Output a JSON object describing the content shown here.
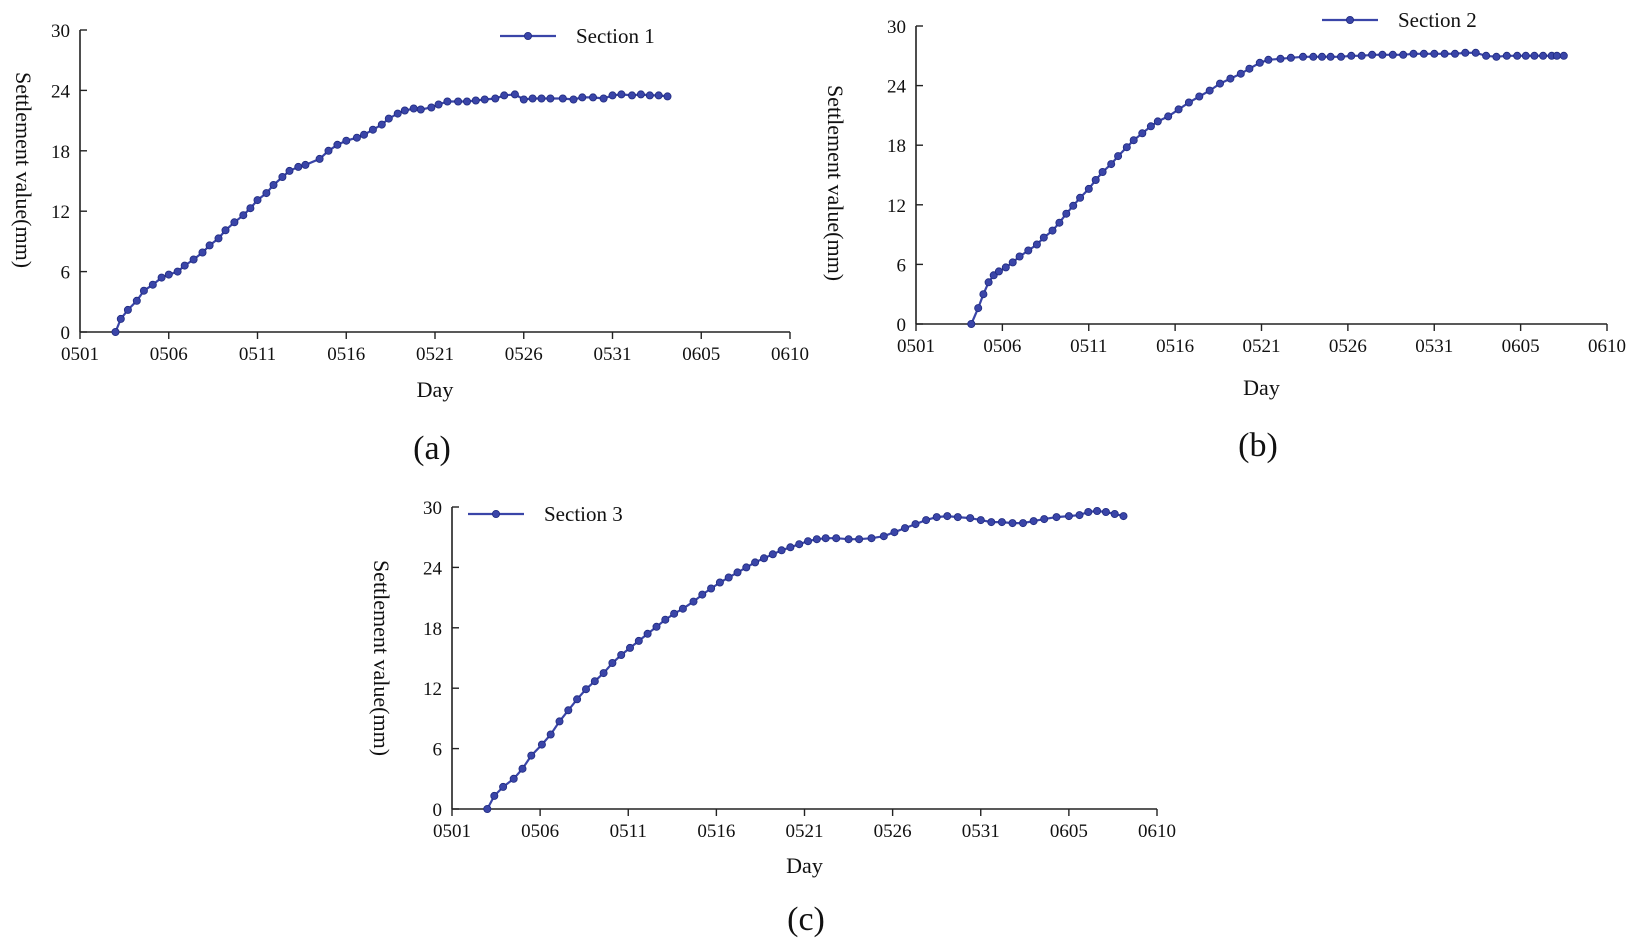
{
  "figure": {
    "xlabel": "Day",
    "ylabel": "Settlement value(mm)",
    "accent_color": "#3a45a8"
  },
  "chart_data": [
    {
      "type": "line",
      "panel_label": "(a)",
      "title": "",
      "xlabel": "Day",
      "ylabel": "Settlement value(mm)",
      "x_tick_labels": [
        "0501",
        "0506",
        "0511",
        "0516",
        "0521",
        "0526",
        "0531",
        "0605",
        "0610"
      ],
      "x_tick_days": [
        0,
        5,
        10,
        15,
        20,
        25,
        30,
        35,
        40
      ],
      "xlim": [
        0,
        40
      ],
      "ylim": [
        0,
        30
      ],
      "y_ticks": [
        0,
        6,
        12,
        18,
        24,
        30
      ],
      "legend": "top-center",
      "series": [
        {
          "name": "Section 1",
          "x_day": [
            2,
            2.3,
            2.7,
            3.2,
            3.6,
            4.1,
            4.6,
            5.0,
            5.5,
            5.9,
            6.4,
            6.9,
            7.3,
            7.8,
            8.2,
            8.7,
            9.2,
            9.6,
            10.0,
            10.5,
            10.9,
            11.4,
            11.8,
            12.3,
            12.7,
            13.5,
            14.0,
            14.5,
            15.0,
            15.6,
            16.0,
            16.5,
            17.0,
            17.4,
            17.9,
            18.3,
            18.8,
            19.2,
            19.8,
            20.2,
            20.7,
            21.3,
            21.8,
            22.3,
            22.8,
            23.4,
            23.9,
            24.5,
            25.0,
            25.5,
            26.0,
            26.5,
            27.2,
            27.8,
            28.3,
            28.9,
            29.5,
            30.0,
            30.5,
            31.1,
            31.6,
            32.1,
            32.6,
            33.1
          ],
          "values": [
            0,
            1.3,
            2.2,
            3.1,
            4.1,
            4.7,
            5.4,
            5.7,
            6.0,
            6.6,
            7.2,
            7.9,
            8.6,
            9.3,
            10.1,
            10.9,
            11.6,
            12.3,
            13.1,
            13.8,
            14.6,
            15.4,
            16.0,
            16.4,
            16.6,
            17.2,
            18.0,
            18.6,
            19.0,
            19.3,
            19.6,
            20.1,
            20.6,
            21.2,
            21.7,
            22.0,
            22.2,
            22.1,
            22.3,
            22.6,
            22.9,
            22.9,
            22.9,
            23.0,
            23.1,
            23.2,
            23.5,
            23.6,
            23.1,
            23.2,
            23.2,
            23.2,
            23.2,
            23.1,
            23.3,
            23.3,
            23.2,
            23.5,
            23.6,
            23.5,
            23.6,
            23.5,
            23.5,
            23.4
          ]
        }
      ]
    },
    {
      "type": "line",
      "panel_label": "(b)",
      "title": "",
      "xlabel": "Day",
      "ylabel": "Settlement value(mm)",
      "x_tick_labels": [
        "0501",
        "0506",
        "0511",
        "0516",
        "0521",
        "0526",
        "0531",
        "0605",
        "0610"
      ],
      "x_tick_days": [
        0,
        5,
        10,
        15,
        20,
        25,
        30,
        35,
        40
      ],
      "xlim": [
        0,
        40
      ],
      "ylim": [
        0,
        30
      ],
      "y_ticks": [
        0,
        6,
        12,
        18,
        24,
        30
      ],
      "legend": "top-center",
      "series": [
        {
          "name": "Section 2",
          "x_day": [
            3.2,
            3.6,
            3.9,
            4.2,
            4.5,
            4.8,
            5.2,
            5.6,
            6.0,
            6.5,
            7.0,
            7.4,
            7.9,
            8.3,
            8.7,
            9.1,
            9.5,
            10.0,
            10.4,
            10.8,
            11.3,
            11.7,
            12.2,
            12.6,
            13.1,
            13.6,
            14.0,
            14.6,
            15.2,
            15.8,
            16.4,
            17.0,
            17.6,
            18.2,
            18.8,
            19.3,
            19.9,
            20.4,
            21.1,
            21.7,
            22.4,
            23.0,
            23.5,
            24.0,
            24.6,
            25.2,
            25.8,
            26.4,
            27.0,
            27.6,
            28.2,
            28.8,
            29.4,
            30.0,
            30.6,
            31.2,
            31.8,
            32.4,
            33.0,
            33.6,
            34.2,
            34.8,
            35.3,
            35.8,
            36.3,
            36.8,
            37.1,
            37.5
          ],
          "values": [
            0,
            1.6,
            3.0,
            4.2,
            4.9,
            5.3,
            5.7,
            6.2,
            6.8,
            7.4,
            8.0,
            8.7,
            9.4,
            10.2,
            11.1,
            11.9,
            12.7,
            13.6,
            14.5,
            15.3,
            16.1,
            16.9,
            17.8,
            18.5,
            19.2,
            19.9,
            20.4,
            20.9,
            21.6,
            22.3,
            22.9,
            23.5,
            24.2,
            24.7,
            25.2,
            25.7,
            26.3,
            26.6,
            26.7,
            26.8,
            26.9,
            26.9,
            26.9,
            26.9,
            26.9,
            27.0,
            27.0,
            27.1,
            27.1,
            27.1,
            27.1,
            27.2,
            27.2,
            27.2,
            27.2,
            27.2,
            27.3,
            27.3,
            27.0,
            26.9,
            27.0,
            27.0,
            27.0,
            27.0,
            27.0,
            27.0,
            27.0,
            27.0
          ]
        }
      ]
    },
    {
      "type": "line",
      "panel_label": "(c)",
      "title": "",
      "xlabel": "Day",
      "ylabel": "Settlement value(mm)",
      "x_tick_labels": [
        "0501",
        "0506",
        "0511",
        "0516",
        "0521",
        "0526",
        "0531",
        "0605",
        "0610"
      ],
      "x_tick_days": [
        0,
        5,
        10,
        15,
        20,
        25,
        30,
        35,
        40
      ],
      "xlim": [
        0,
        40
      ],
      "ylim": [
        0,
        30
      ],
      "y_ticks": [
        0,
        6,
        12,
        18,
        24,
        30
      ],
      "legend": "top-left",
      "series": [
        {
          "name": "Section 3",
          "x_day": [
            2.0,
            2.4,
            2.9,
            3.5,
            4.0,
            4.5,
            5.1,
            5.6,
            6.1,
            6.6,
            7.1,
            7.6,
            8.1,
            8.6,
            9.1,
            9.6,
            10.1,
            10.6,
            11.1,
            11.6,
            12.1,
            12.6,
            13.1,
            13.7,
            14.2,
            14.7,
            15.2,
            15.7,
            16.2,
            16.7,
            17.2,
            17.7,
            18.2,
            18.7,
            19.2,
            19.7,
            20.2,
            20.7,
            21.2,
            21.8,
            22.5,
            23.1,
            23.8,
            24.5,
            25.1,
            25.7,
            26.3,
            26.9,
            27.5,
            28.1,
            28.7,
            29.4,
            30.0,
            30.6,
            31.2,
            31.8,
            32.4,
            33.0,
            33.6,
            34.3,
            35.0,
            35.6,
            36.1,
            36.6,
            37.1,
            37.6,
            38.1
          ],
          "values": [
            0,
            1.3,
            2.2,
            3.0,
            4.0,
            5.3,
            6.4,
            7.4,
            8.7,
            9.8,
            10.9,
            11.9,
            12.7,
            13.5,
            14.5,
            15.3,
            16.0,
            16.7,
            17.4,
            18.1,
            18.8,
            19.4,
            19.9,
            20.6,
            21.3,
            21.9,
            22.5,
            23.0,
            23.5,
            24.0,
            24.5,
            24.9,
            25.3,
            25.7,
            26.0,
            26.3,
            26.6,
            26.8,
            26.9,
            26.9,
            26.8,
            26.8,
            26.9,
            27.1,
            27.5,
            27.9,
            28.3,
            28.7,
            29.0,
            29.1,
            29.0,
            28.9,
            28.7,
            28.5,
            28.5,
            28.4,
            28.4,
            28.6,
            28.8,
            29.0,
            29.1,
            29.2,
            29.5,
            29.6,
            29.5,
            29.3,
            29.1
          ]
        }
      ]
    }
  ]
}
